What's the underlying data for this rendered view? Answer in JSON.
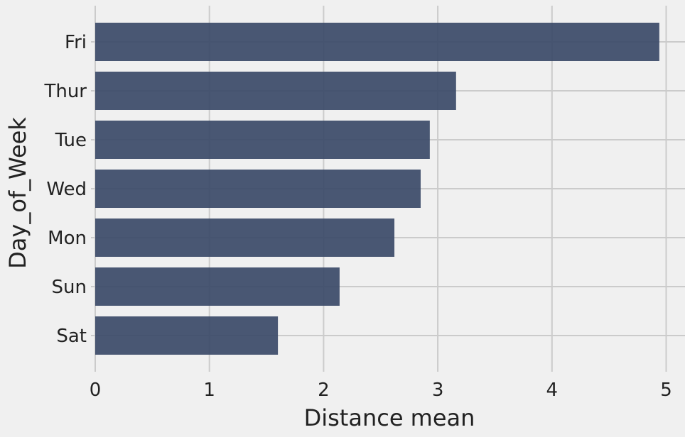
{
  "chart_data": {
    "type": "bar",
    "orientation": "horizontal",
    "categories": [
      "Fri",
      "Thur",
      "Tue",
      "Wed",
      "Mon",
      "Sun",
      "Sat"
    ],
    "values": [
      4.94,
      3.16,
      2.93,
      2.85,
      2.62,
      2.14,
      1.6
    ],
    "xlabel": "Distance mean",
    "ylabel": "Day_of_Week",
    "xlim": [
      0,
      5.2
    ],
    "xticks": [
      0,
      1,
      2,
      3,
      4,
      5
    ],
    "grid": true,
    "bar_color": "#3b4a68",
    "background_color": "#f0f0f0",
    "grid_color": "#cbcbcb"
  }
}
